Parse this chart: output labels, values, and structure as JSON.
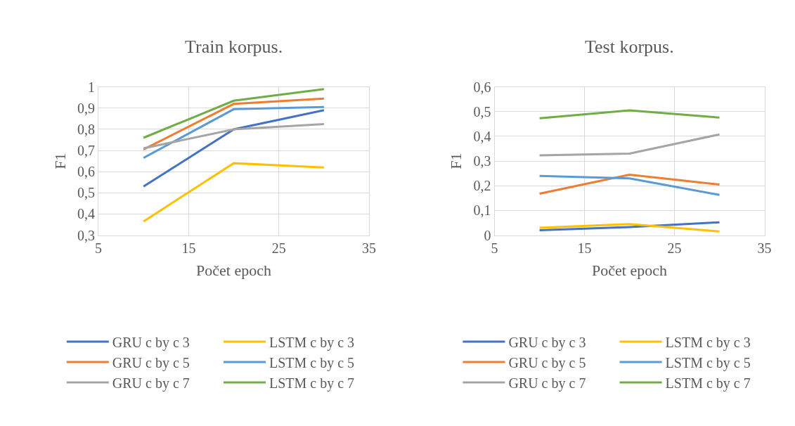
{
  "chart_data": [
    {
      "type": "line",
      "title": "Train korpus.",
      "xlabel": "Počet epoch",
      "ylabel": "F1",
      "x": [
        10,
        20,
        30
      ],
      "xlim": [
        5,
        35
      ],
      "xticks": [
        5,
        15,
        25,
        35
      ],
      "ylim": [
        0.3,
        1
      ],
      "yticks": [
        {
          "value": 0.3,
          "label": "0,3"
        },
        {
          "value": 0.4,
          "label": "0,4"
        },
        {
          "value": 0.5,
          "label": "0,5"
        },
        {
          "value": 0.6,
          "label": "0,6"
        },
        {
          "value": 0.7,
          "label": "0,7"
        },
        {
          "value": 0.8,
          "label": "0,8"
        },
        {
          "value": 0.9,
          "label": "0,9"
        },
        1
      ],
      "grid": true,
      "legend": "bottom",
      "marker": "none",
      "line_style": "solid",
      "series": [
        {
          "name": "GRU c by c 3",
          "color": "#4472c4",
          "values": [
            0.53,
            0.8,
            0.89
          ]
        },
        {
          "name": "LSTM c by c 3",
          "color": "#ffc000",
          "values": [
            0.365,
            0.64,
            0.62
          ]
        },
        {
          "name": "GRU c by c 5",
          "color": "#ed7d31",
          "values": [
            0.705,
            0.92,
            0.945
          ]
        },
        {
          "name": "LSTM c by c 5",
          "color": "#5b9bd5",
          "values": [
            0.665,
            0.895,
            0.905
          ]
        },
        {
          "name": "GRU c by c 7",
          "color": "#a5a5a5",
          "values": [
            0.71,
            0.8,
            0.825
          ]
        },
        {
          "name": "LSTM c by c 7",
          "color": "#70ad47",
          "values": [
            0.76,
            0.935,
            0.99
          ]
        }
      ]
    },
    {
      "type": "line",
      "title": "Test korpus.",
      "xlabel": "Počet epoch",
      "ylabel": "F1",
      "x": [
        10,
        20,
        30
      ],
      "xlim": [
        5,
        35
      ],
      "xticks": [
        5,
        15,
        25,
        35
      ],
      "ylim": [
        0,
        0.6
      ],
      "yticks": [
        0,
        {
          "value": 0.1,
          "label": "0,1"
        },
        {
          "value": 0.2,
          "label": "0,2"
        },
        {
          "value": 0.3,
          "label": "0,3"
        },
        {
          "value": 0.4,
          "label": "0,4"
        },
        {
          "value": 0.5,
          "label": "0,5"
        },
        {
          "value": 0.6,
          "label": "0,6"
        }
      ],
      "grid": true,
      "legend": "bottom",
      "marker": "none",
      "line_style": "solid",
      "series": [
        {
          "name": "GRU c by c 3",
          "color": "#4472c4",
          "values": [
            0.02,
            0.033,
            0.052
          ]
        },
        {
          "name": "LSTM c by c 3",
          "color": "#ffc000",
          "values": [
            0.03,
            0.045,
            0.015
          ]
        },
        {
          "name": "GRU c by c 5",
          "color": "#ed7d31",
          "values": [
            0.168,
            0.245,
            0.205
          ]
        },
        {
          "name": "LSTM c by c 5",
          "color": "#5b9bd5",
          "values": [
            0.24,
            0.23,
            0.163
          ]
        },
        {
          "name": "GRU c by c 7",
          "color": "#a5a5a5",
          "values": [
            0.323,
            0.33,
            0.408
          ]
        },
        {
          "name": "LSTM c by c 7",
          "color": "#70ad47",
          "values": [
            0.473,
            0.505,
            0.476
          ]
        }
      ]
    }
  ]
}
